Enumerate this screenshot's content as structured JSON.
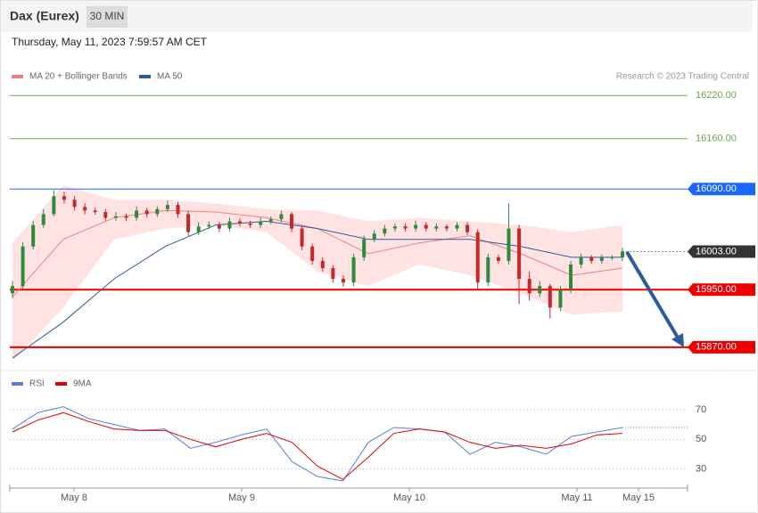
{
  "chart_data": [
    {
      "type": "candlestick",
      "title": "Dax (Eurex)",
      "timeframe": "30 MIN",
      "subtitle": "Thursday, May 11, 2023 7:59:57 AM CET",
      "credit": "Research © 2023 Trading Central",
      "open": [
        15945,
        15955,
        16010,
        16040,
        16055,
        16080,
        16075,
        16065,
        16060,
        16058,
        16050,
        16052,
        16050,
        16060,
        16055,
        16062,
        16068,
        16055,
        16030,
        16038,
        16040,
        16035,
        16045,
        16042,
        16040,
        16045,
        16048,
        16055,
        16035,
        16010,
        15990,
        15980,
        15965,
        15960,
        15995,
        16020,
        16028,
        16035,
        16038,
        16035,
        16040,
        16035,
        16038,
        16035,
        16040,
        16030,
        15960,
        15995,
        15990,
        16035,
        15965,
        15945,
        15955,
        15925,
        15950,
        15985,
        15995,
        15990,
        15995,
        15995
      ],
      "high": [
        15962,
        16016,
        16046,
        16062,
        16088,
        16086,
        16080,
        16070,
        16064,
        16062,
        16058,
        16056,
        16066,
        16064,
        16066,
        16074,
        16072,
        16060,
        16044,
        16045,
        16044,
        16050,
        16049,
        16046,
        16050,
        16052,
        16060,
        16058,
        16040,
        16014,
        15995,
        15984,
        15970,
        16000,
        16025,
        16033,
        16040,
        16042,
        16042,
        16046,
        16044,
        16042,
        16041,
        16044,
        16044,
        16034,
        16000,
        15999,
        16070,
        16040,
        15975,
        15962,
        15958,
        15955,
        15990,
        16000,
        15998,
        15999,
        15998,
        16008
      ],
      "low": [
        15938,
        15950,
        16006,
        16036,
        16052,
        16070,
        16060,
        16055,
        16054,
        16046,
        16046,
        16046,
        16046,
        16050,
        16051,
        16058,
        16050,
        16025,
        16026,
        16034,
        16030,
        16031,
        16038,
        16036,
        16036,
        16041,
        16044,
        16030,
        16005,
        15985,
        15975,
        15960,
        15954,
        15955,
        15990,
        16016,
        16024,
        16031,
        16031,
        16031,
        16031,
        16031,
        16031,
        16031,
        16026,
        15950,
        15955,
        15986,
        15985,
        15930,
        15935,
        15940,
        15910,
        15920,
        15945,
        15980,
        15986,
        15986,
        15991,
        15990
      ],
      "close": [
        15955,
        16010,
        16040,
        16055,
        16080,
        16075,
        16065,
        16060,
        16058,
        16050,
        16052,
        16050,
        16060,
        16055,
        16062,
        16068,
        16055,
        16030,
        16038,
        16040,
        16035,
        16045,
        16042,
        16040,
        16045,
        16048,
        16055,
        16035,
        16010,
        15990,
        15980,
        15965,
        15960,
        15995,
        16020,
        16028,
        16035,
        16038,
        16035,
        16040,
        16035,
        16038,
        16035,
        16040,
        16030,
        15960,
        15995,
        15990,
        16035,
        15965,
        15945,
        15955,
        15925,
        15950,
        15985,
        15995,
        15990,
        15995,
        15995,
        16003
      ],
      "up_color": "#2e8b3e",
      "down_color": "#c62828",
      "series": [
        {
          "name": "MA 20 + Bollinger Bands",
          "color": "#f08080",
          "values": [
            15940,
            16020,
            16050,
            16060,
            16058,
            16050,
            16035,
            16000,
            16015,
            16025,
            16000,
            15970,
            15980
          ]
        },
        {
          "name": "MA 50",
          "color": "#2f5b9a",
          "values": [
            15855,
            15905,
            15965,
            16010,
            16040,
            16045,
            16035,
            16020,
            16020,
            16020,
            16010,
            15995,
            15995
          ]
        }
      ],
      "bollinger": {
        "color": "#ffe3e3",
        "upper": [
          16015,
          16095,
          16075,
          16075,
          16070,
          16062,
          16060,
          16045,
          16050,
          16045,
          16040,
          16030,
          16040
        ],
        "lower": [
          15850,
          15925,
          16020,
          16035,
          16040,
          16030,
          15975,
          15955,
          15985,
          15970,
          15945,
          15915,
          15920
        ]
      },
      "levels": [
        {
          "value": 16220,
          "label": "16220.00",
          "color": "#6aa84f",
          "boxed": false
        },
        {
          "value": 16160,
          "label": "16160.00",
          "color": "#6aa84f",
          "boxed": false
        },
        {
          "value": 16090,
          "label": "16090.00",
          "color": "#1a66ff",
          "boxed": true
        },
        {
          "value": 15950,
          "label": "15950.00",
          "color": "#ee0000",
          "boxed": true
        },
        {
          "value": 15870,
          "label": "15870.00",
          "color": "#ee0000",
          "boxed": true
        }
      ],
      "last": {
        "value": 16003,
        "label": "16003.00",
        "color": "#333333"
      },
      "ylim": [
        15845,
        16229
      ]
    },
    {
      "type": "line",
      "series": [
        {
          "name": "RSI",
          "color": "#5b7fd6",
          "values": [
            57,
            68,
            72,
            64,
            60,
            56,
            57,
            44,
            48,
            53,
            57,
            35,
            25,
            22,
            48,
            58,
            57,
            55,
            40,
            48,
            45,
            40,
            52,
            55,
            58
          ]
        },
        {
          "name": "9MA",
          "color": "#e00000",
          "values": [
            55,
            63,
            68,
            62,
            57,
            56,
            56,
            50,
            45,
            50,
            54,
            48,
            32,
            23,
            38,
            54,
            57,
            55,
            48,
            44,
            46,
            44,
            47,
            53,
            54
          ]
        }
      ],
      "ylim": [
        19,
        79
      ],
      "yticks": [
        30,
        50,
        70
      ],
      "xticks": [
        "May 8",
        "May 9",
        "May 10",
        "May 11",
        "May 15"
      ]
    }
  ]
}
